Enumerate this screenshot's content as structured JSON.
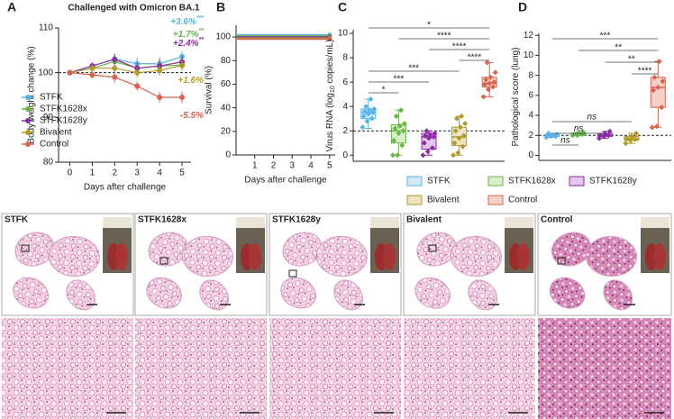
{
  "chart_data": [
    {
      "type": "line",
      "panel": "A",
      "title": "Challenged with Omicron BA.1",
      "xlabel": "Days after challenge",
      "ylabel": "Body weight change (%)",
      "x": [
        0,
        1,
        2,
        3,
        4,
        5
      ],
      "xlim": [
        -0.5,
        5.4
      ],
      "xticks": [
        0,
        1,
        2,
        3,
        4,
        5
      ],
      "ylim": [
        80,
        110
      ],
      "yticks": [
        80,
        90,
        100,
        110
      ],
      "reference_line": 100,
      "legend": "lower left",
      "series": [
        {
          "name": "STFK",
          "color": "#5ab4e5",
          "values": [
            100,
            101.5,
            103,
            102,
            102,
            103.6
          ],
          "errors": [
            0.2,
            0.8,
            1.2,
            1.3,
            1.5,
            1.2
          ]
        },
        {
          "name": "STFK1628x",
          "color": "#6ab547",
          "values": [
            100,
            101,
            102.5,
            101,
            101.5,
            101.7
          ],
          "errors": [
            0.2,
            0.8,
            1.2,
            1.2,
            1.5,
            1.2
          ]
        },
        {
          "name": "STFK1628y",
          "color": "#8b2ca5",
          "values": [
            100,
            101.5,
            103,
            101,
            101.5,
            102.4
          ],
          "errors": [
            0.2,
            0.8,
            1.2,
            1.3,
            1.5,
            1.3
          ]
        },
        {
          "name": "Bivalent",
          "color": "#b09a2a",
          "values": [
            100,
            101,
            101,
            100,
            100.5,
            101.6
          ],
          "errors": [
            0.2,
            0.8,
            1.0,
            1.1,
            1.2,
            1.2
          ]
        },
        {
          "name": "Control",
          "color": "#d8634f",
          "values": [
            100,
            99.5,
            99,
            97,
            94.5,
            94.5
          ],
          "errors": [
            0.2,
            0.8,
            1.2,
            1.0,
            1.2,
            1.3
          ]
        }
      ],
      "annotations": [
        {
          "text": "+3.6%",
          "sup": "***",
          "color": "#5ab4e5"
        },
        {
          "text": "+1.7%",
          "sup": "**",
          "color": "#6ab547"
        },
        {
          "text": "+2.4%",
          "sup": "**",
          "color": "#8b2ca5"
        },
        {
          "text": "+1.6%",
          "color": "#b09a2a"
        },
        {
          "text": "-5.5%",
          "color": "#d8634f"
        }
      ]
    },
    {
      "type": "line",
      "panel": "B",
      "xlabel": "Days after challenge",
      "ylabel": "Survival (%)",
      "x": [
        0,
        1,
        2,
        3,
        4,
        5
      ],
      "xlim": [
        0,
        5.3
      ],
      "xticks": [
        1,
        2,
        3,
        4,
        5
      ],
      "ylim": [
        0,
        110
      ],
      "yticks": [
        0,
        20,
        40,
        60,
        80,
        100
      ],
      "series": [
        {
          "color": "#5ab4e5",
          "values": [
            100,
            100,
            100,
            100,
            100,
            100
          ]
        },
        {
          "color": "#6ab547",
          "values": [
            100,
            100,
            100,
            100,
            100,
            100
          ]
        },
        {
          "color": "#8b2ca5",
          "values": [
            100,
            100,
            100,
            100,
            100,
            100
          ]
        },
        {
          "color": "#b09a2a",
          "values": [
            100,
            100,
            100,
            100,
            100,
            100
          ]
        },
        {
          "color": "#d8634f",
          "values": [
            100,
            100,
            100,
            100,
            100,
            100
          ]
        }
      ]
    },
    {
      "type": "box",
      "panel": "C",
      "ylabel": [
        "Virus RNA (log",
        "10",
        " copies/mL)"
      ],
      "ylim": [
        -0.5,
        10.3
      ],
      "yticks": [
        0,
        2,
        4,
        6,
        8,
        10
      ],
      "reference_line": 2,
      "legend": "below",
      "series": [
        {
          "name": "STFK",
          "color": "#5ab4e5",
          "fill": "#cfe8f6",
          "box": [
            2.2,
            3.0,
            3.5,
            3.8,
            4.6
          ],
          "points": [
            2.3,
            2.8,
            3.0,
            3.2,
            3.4,
            3.5,
            3.6,
            3.7,
            3.8,
            4.0,
            4.6
          ]
        },
        {
          "name": "STFK1628x",
          "color": "#6ab547",
          "fill": "#d8edc9",
          "box": [
            0,
            1.0,
            2.0,
            2.5,
            3.7
          ],
          "points": [
            0,
            0,
            0.8,
            1.2,
            1.8,
            2.0,
            2.2,
            2.4,
            2.6,
            3.2,
            3.7
          ]
        },
        {
          "name": "STFK1628y",
          "color": "#8b2ca5",
          "fill": "#e3c6ec",
          "box": [
            0,
            0.5,
            1.5,
            1.8,
            2.0
          ],
          "points": [
            0,
            0.3,
            0.6,
            1.0,
            1.4,
            1.5,
            1.6,
            1.7,
            1.8,
            2.0
          ]
        },
        {
          "name": "Bivalent",
          "color": "#b09a2a",
          "fill": "#ece4c0",
          "box": [
            0,
            0.8,
            1.5,
            2.3,
            3.2
          ],
          "points": [
            0,
            0.2,
            0.7,
            1.0,
            1.4,
            1.6,
            2.0,
            2.3,
            2.6,
            3.0,
            3.2
          ]
        },
        {
          "name": "Control",
          "color": "#d8634f",
          "fill": "#f6d0c8",
          "box": [
            4.8,
            5.6,
            5.9,
            6.4,
            7.6
          ],
          "points": [
            4.8,
            5.4,
            5.6,
            5.8,
            5.9,
            6.0,
            6.2,
            6.4,
            6.8,
            7.6
          ]
        }
      ],
      "brackets": [
        {
          "from": 0,
          "to": 4,
          "label": "*"
        },
        {
          "from": 1,
          "to": 4,
          "label": "****"
        },
        {
          "from": 2,
          "to": 4,
          "label": "****"
        },
        {
          "from": 3,
          "to": 4,
          "label": "****"
        },
        {
          "from": 0,
          "to": 3,
          "label": "***"
        },
        {
          "from": 0,
          "to": 2,
          "label": "***"
        },
        {
          "from": 0,
          "to": 1,
          "label": "*"
        }
      ]
    },
    {
      "type": "box",
      "panel": "D",
      "ylabel": [
        "Pathological score (lung)"
      ],
      "ylim": [
        -0.5,
        12.2
      ],
      "yticks": [
        0,
        2,
        4,
        6,
        8,
        10,
        12
      ],
      "reference_line": 2,
      "series": [
        {
          "color": "#5ab4e5",
          "fill": "#cfe8f6",
          "box": [
            1.8,
            1.9,
            2.0,
            2.1,
            2.2
          ],
          "points": [
            1.8,
            1.9,
            1.9,
            2.0,
            2.0,
            2.1,
            2.2
          ]
        },
        {
          "color": "#6ab547",
          "fill": "#d8edc9",
          "box": [
            2.0,
            2.0,
            2.1,
            2.2,
            2.3
          ],
          "points": [
            2.0,
            2.0,
            2.1,
            2.1,
            2.2,
            2.3
          ]
        },
        {
          "color": "#8b2ca5",
          "fill": "#e3c6ec",
          "box": [
            1.7,
            1.9,
            2.0,
            2.2,
            2.4
          ],
          "points": [
            1.7,
            1.9,
            2.0,
            2.0,
            2.2,
            2.4
          ]
        },
        {
          "color": "#b09a2a",
          "fill": "#ece4c0",
          "box": [
            1.2,
            1.5,
            1.7,
            1.9,
            2.2
          ],
          "points": [
            1.2,
            1.5,
            1.6,
            1.7,
            1.9,
            2.2
          ]
        },
        {
          "color": "#d8634f",
          "fill": "#f6d0c8",
          "box": [
            2.8,
            4.8,
            6.8,
            7.8,
            9.4
          ],
          "points": [
            2.8,
            2.9,
            4.8,
            6.5,
            6.8,
            7.4,
            7.8,
            9.4
          ]
        }
      ],
      "brackets": [
        {
          "from": 0,
          "to": 4,
          "label": "***"
        },
        {
          "from": 1,
          "to": 4,
          "label": "**"
        },
        {
          "from": 2,
          "to": 4,
          "label": "**"
        },
        {
          "from": 3,
          "to": 4,
          "label": "****"
        },
        {
          "from": 0,
          "to": 3,
          "label": "ns"
        },
        {
          "from": 0,
          "to": 2,
          "label": "ns"
        },
        {
          "from": 0,
          "to": 1,
          "label": "ns"
        }
      ]
    }
  ],
  "histology": {
    "panel": "E",
    "images": [
      {
        "label": "STFK",
        "color": "#5ab4e5"
      },
      {
        "label": "STFK1628x",
        "color": "#6ab547"
      },
      {
        "label": "STFK1628y",
        "color": "#8b2ca5"
      },
      {
        "label": "Bivalent",
        "color": "#b09a2a"
      },
      {
        "label": "Control",
        "color": "#d8634f"
      }
    ]
  }
}
